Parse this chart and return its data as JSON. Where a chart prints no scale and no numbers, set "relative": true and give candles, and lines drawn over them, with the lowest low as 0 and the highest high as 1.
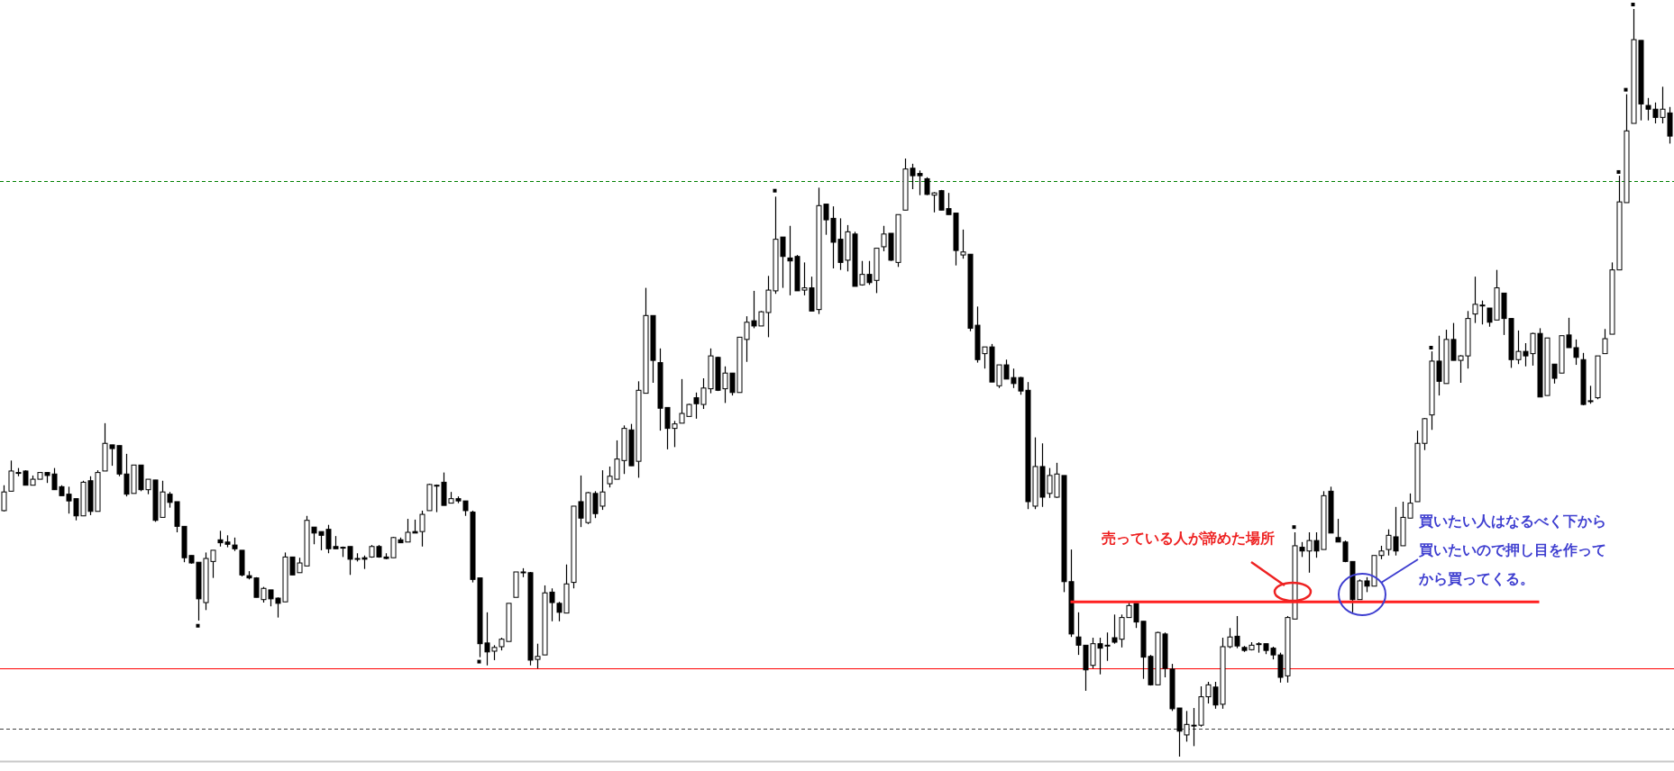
{
  "chart_data": {
    "type": "candlestick",
    "relative": true,
    "categories": [
      null,
      null,
      null,
      null,
      null,
      null,
      null,
      null,
      null,
      null,
      null,
      null,
      null,
      null,
      null,
      null,
      null,
      null,
      null,
      null,
      null,
      null,
      null,
      null,
      null,
      null,
      null,
      null,
      null,
      null,
      null,
      null,
      null,
      null,
      null,
      null,
      null,
      null,
      null,
      null,
      null,
      null,
      null,
      null,
      null,
      null,
      null,
      null,
      null,
      null,
      null,
      null,
      null,
      null,
      null,
      null,
      null,
      null,
      null,
      null,
      null,
      null,
      null,
      null,
      null,
      null,
      null,
      null,
      null,
      null,
      null,
      null,
      null,
      null,
      null,
      null,
      null,
      null,
      null,
      null,
      null,
      null,
      null,
      null,
      null,
      null,
      null,
      null,
      null,
      null,
      null,
      null,
      null,
      null,
      null,
      null,
      null,
      null,
      null,
      null,
      null,
      null,
      null,
      null,
      null,
      null,
      null,
      null,
      null,
      null,
      null,
      null,
      null,
      null,
      null,
      null,
      null,
      null,
      null,
      null,
      null,
      null,
      null,
      null,
      null,
      null,
      null,
      null,
      null,
      null,
      null,
      null,
      null,
      null,
      null,
      null,
      null,
      null,
      null,
      null,
      null,
      null,
      null,
      null,
      null,
      null,
      null,
      null,
      null,
      null,
      null,
      null,
      null,
      null,
      null,
      null,
      null,
      null,
      null,
      null,
      null,
      null,
      null,
      null,
      null,
      null,
      null,
      null,
      null,
      null,
      null,
      null,
      null,
      null,
      null,
      null,
      null,
      null,
      null,
      null,
      null,
      null,
      null,
      null,
      null,
      null,
      null,
      null,
      null,
      null,
      null,
      null,
      null,
      null,
      null,
      null,
      null,
      null,
      null,
      null,
      null,
      null,
      null,
      null,
      null,
      null,
      null,
      null,
      null,
      null,
      null,
      null,
      null,
      null,
      null,
      null,
      null,
      null,
      null,
      null,
      null,
      null,
      null,
      null,
      null,
      null,
      null,
      null,
      null,
      null,
      null,
      null
    ],
    "ohlc": [
      [
        0.329,
        0.363,
        0.328,
        0.354
      ],
      [
        0.355,
        0.396,
        0.355,
        0.382
      ],
      [
        0.38,
        0.386,
        0.375,
        0.38
      ],
      [
        0.382,
        0.383,
        0.363,
        0.363
      ],
      [
        0.363,
        0.376,
        0.363,
        0.371
      ],
      [
        0.371,
        0.38,
        0.371,
        0.38
      ],
      [
        0.38,
        0.38,
        0.366,
        0.376
      ],
      [
        0.378,
        0.386,
        0.357,
        0.357
      ],
      [
        0.361,
        0.363,
        0.349,
        0.349
      ],
      [
        0.351,
        0.361,
        0.325,
        0.342
      ],
      [
        0.345,
        0.345,
        0.316,
        0.322
      ],
      [
        0.322,
        0.369,
        0.322,
        0.367
      ],
      [
        0.369,
        0.375,
        0.323,
        0.328
      ],
      [
        0.328,
        0.383,
        0.328,
        0.38
      ],
      [
        0.382,
        0.446,
        0.382,
        0.419
      ],
      [
        0.417,
        0.417,
        0.389,
        0.412
      ],
      [
        0.416,
        0.416,
        0.375,
        0.378
      ],
      [
        0.378,
        0.405,
        0.348,
        0.351
      ],
      [
        0.352,
        0.39,
        0.352,
        0.39
      ],
      [
        0.39,
        0.39,
        0.355,
        0.357
      ],
      [
        0.357,
        0.371,
        0.351,
        0.371
      ],
      [
        0.37,
        0.37,
        0.314,
        0.316
      ],
      [
        0.32,
        0.369,
        0.32,
        0.354
      ],
      [
        0.351,
        0.354,
        0.333,
        0.34
      ],
      [
        0.341,
        0.341,
        0.3,
        0.308
      ],
      [
        0.308,
        0.308,
        0.26,
        0.266
      ],
      [
        0.269,
        0.269,
        0.258,
        0.259
      ],
      [
        0.26,
        0.26,
        0.182,
        0.211
      ],
      [
        0.206,
        0.273,
        0.196,
        0.265
      ],
      [
        0.261,
        0.276,
        0.239,
        0.276
      ],
      [
        0.29,
        0.302,
        0.281,
        0.286
      ],
      [
        0.287,
        0.296,
        0.28,
        0.284
      ],
      [
        0.283,
        0.293,
        0.275,
        0.278
      ],
      [
        0.276,
        0.276,
        0.241,
        0.243
      ],
      [
        0.242,
        0.248,
        0.237,
        0.239
      ],
      [
        0.239,
        0.24,
        0.213,
        0.213
      ],
      [
        0.21,
        0.227,
        0.206,
        0.225
      ],
      [
        0.223,
        0.223,
        0.201,
        0.211
      ],
      [
        0.212,
        0.213,
        0.186,
        0.205
      ],
      [
        0.207,
        0.273,
        0.207,
        0.267
      ],
      [
        0.267,
        0.267,
        0.243,
        0.243
      ],
      [
        0.246,
        0.266,
        0.246,
        0.259
      ],
      [
        0.255,
        0.322,
        0.255,
        0.316
      ],
      [
        0.307,
        0.307,
        0.284,
        0.299
      ],
      [
        0.301,
        0.301,
        0.276,
        0.296
      ],
      [
        0.304,
        0.31,
        0.272,
        0.278
      ],
      [
        0.281,
        0.295,
        0.278,
        0.278
      ],
      [
        0.28,
        0.281,
        0.267,
        0.28
      ],
      [
        0.281,
        0.281,
        0.243,
        0.264
      ],
      [
        0.265,
        0.272,
        0.261,
        0.265
      ],
      [
        0.266,
        0.269,
        0.251,
        0.264
      ],
      [
        0.267,
        0.283,
        0.266,
        0.281
      ],
      [
        0.281,
        0.283,
        0.266,
        0.267
      ],
      [
        0.267,
        0.272,
        0.264,
        0.265
      ],
      [
        0.266,
        0.294,
        0.266,
        0.293
      ],
      [
        0.29,
        0.293,
        0.286,
        0.286
      ],
      [
        0.287,
        0.318,
        0.287,
        0.3
      ],
      [
        0.301,
        0.317,
        0.299,
        0.299
      ],
      [
        0.301,
        0.329,
        0.281,
        0.324
      ],
      [
        0.329,
        0.365,
        0.329,
        0.364
      ],
      [
        0.363,
        0.364,
        0.327,
        0.363
      ],
      [
        0.367,
        0.38,
        0.336,
        0.336
      ],
      [
        0.339,
        0.354,
        0.339,
        0.345
      ],
      [
        0.345,
        0.348,
        0.339,
        0.342
      ],
      [
        0.342,
        0.342,
        0.322,
        0.329
      ],
      [
        0.327,
        0.329,
        0.233,
        0.237
      ],
      [
        0.239,
        0.239,
        0.133,
        0.151
      ],
      [
        0.152,
        0.193,
        0.122,
        0.14
      ],
      [
        0.141,
        0.149,
        0.129,
        0.146
      ],
      [
        0.147,
        0.159,
        0.142,
        0.157
      ],
      [
        0.154,
        0.205,
        0.154,
        0.205
      ],
      [
        0.213,
        0.247,
        0.213,
        0.247
      ],
      [
        0.247,
        0.252,
        0.24,
        0.247
      ],
      [
        0.246,
        0.247,
        0.122,
        0.129
      ],
      [
        0.13,
        0.151,
        0.118,
        0.134
      ],
      [
        0.136,
        0.229,
        0.136,
        0.219
      ],
      [
        0.22,
        0.225,
        0.181,
        0.206
      ],
      [
        0.205,
        0.207,
        0.181,
        0.193
      ],
      [
        0.192,
        0.257,
        0.192,
        0.231
      ],
      [
        0.233,
        0.335,
        0.225,
        0.335
      ],
      [
        0.341,
        0.376,
        0.307,
        0.319
      ],
      [
        0.313,
        0.354,
        0.311,
        0.353
      ],
      [
        0.352,
        0.355,
        0.319,
        0.325
      ],
      [
        0.335,
        0.383,
        0.33,
        0.354
      ],
      [
        0.365,
        0.388,
        0.36,
        0.375
      ],
      [
        0.371,
        0.423,
        0.371,
        0.398
      ],
      [
        0.396,
        0.443,
        0.378,
        0.439
      ],
      [
        0.437,
        0.445,
        0.389,
        0.389
      ],
      [
        0.395,
        0.502,
        0.373,
        0.49
      ],
      [
        0.486,
        0.627,
        0.486,
        0.59
      ],
      [
        0.59,
        0.59,
        0.5,
        0.53
      ],
      [
        0.527,
        0.546,
        0.436,
        0.466
      ],
      [
        0.467,
        0.467,
        0.411,
        0.439
      ],
      [
        0.439,
        0.449,
        0.414,
        0.445
      ],
      [
        0.446,
        0.505,
        0.446,
        0.459
      ],
      [
        0.455,
        0.472,
        0.455,
        0.471
      ],
      [
        0.48,
        0.487,
        0.452,
        0.472
      ],
      [
        0.471,
        0.506,
        0.465,
        0.493
      ],
      [
        0.492,
        0.546,
        0.486,
        0.536
      ],
      [
        0.534,
        0.535,
        0.489,
        0.49
      ],
      [
        0.492,
        0.522,
        0.473,
        0.513
      ],
      [
        0.513,
        0.513,
        0.483,
        0.487
      ],
      [
        0.487,
        0.561,
        0.487,
        0.561
      ],
      [
        0.558,
        0.589,
        0.528,
        0.581
      ],
      [
        0.583,
        0.623,
        0.573,
        0.576
      ],
      [
        0.576,
        0.596,
        0.576,
        0.595
      ],
      [
        0.594,
        0.643,
        0.561,
        0.624
      ],
      [
        0.623,
        0.749,
        0.619,
        0.692
      ],
      [
        0.695,
        0.695,
        0.627,
        0.669
      ],
      [
        0.667,
        0.71,
        0.617,
        0.663
      ],
      [
        0.669,
        0.671,
        0.623,
        0.623
      ],
      [
        0.624,
        0.661,
        0.617,
        0.627
      ],
      [
        0.627,
        0.642,
        0.596,
        0.596
      ],
      [
        0.598,
        0.761,
        0.592,
        0.737
      ],
      [
        0.739,
        0.739,
        0.698,
        0.718
      ],
      [
        0.72,
        0.736,
        0.653,
        0.688
      ],
      [
        0.692,
        0.72,
        0.651,
        0.661
      ],
      [
        0.664,
        0.711,
        0.649,
        0.702
      ],
      [
        0.699,
        0.702,
        0.629,
        0.629
      ],
      [
        0.631,
        0.663,
        0.63,
        0.645
      ],
      [
        0.645,
        0.663,
        0.631,
        0.634
      ],
      [
        0.637,
        0.68,
        0.62,
        0.68
      ],
      [
        0.682,
        0.71,
        0.676,
        0.699
      ],
      [
        0.7,
        0.7,
        0.663,
        0.664
      ],
      [
        0.661,
        0.725,
        0.655,
        0.725
      ],
      [
        0.731,
        0.8,
        0.731,
        0.786
      ],
      [
        0.787,
        0.793,
        0.759,
        0.777
      ],
      [
        0.78,
        0.784,
        0.751,
        0.777
      ],
      [
        0.773,
        0.775,
        0.751,
        0.752
      ],
      [
        0.751,
        0.755,
        0.728,
        0.754
      ],
      [
        0.757,
        0.758,
        0.731,
        0.731
      ],
      [
        0.733,
        0.754,
        0.725,
        0.725
      ],
      [
        0.727,
        0.727,
        0.657,
        0.677
      ],
      [
        0.671,
        0.705,
        0.666,
        0.675
      ],
      [
        0.672,
        0.672,
        0.569,
        0.573
      ],
      [
        0.577,
        0.602,
        0.527,
        0.531
      ],
      [
        0.539,
        0.548,
        0.519,
        0.548
      ],
      [
        0.548,
        0.552,
        0.501,
        0.501
      ],
      [
        0.496,
        0.524,
        0.493,
        0.524
      ],
      [
        0.524,
        0.531,
        0.505,
        0.505
      ],
      [
        0.507,
        0.519,
        0.493,
        0.499
      ],
      [
        0.507,
        0.508,
        0.484,
        0.489
      ],
      [
        0.49,
        0.501,
        0.331,
        0.341
      ],
      [
        0.335,
        0.427,
        0.331,
        0.388
      ],
      [
        0.388,
        0.419,
        0.334,
        0.347
      ],
      [
        0.352,
        0.386,
        0.346,
        0.376
      ],
      [
        0.347,
        0.393,
        0.346,
        0.378
      ],
      [
        0.376,
        0.376,
        0.22,
        0.234
      ],
      [
        0.234,
        0.277,
        0.16,
        0.164
      ],
      [
        0.16,
        0.193,
        0.136,
        0.149
      ],
      [
        0.149,
        0.149,
        0.088,
        0.116
      ],
      [
        0.122,
        0.159,
        0.118,
        0.151
      ],
      [
        0.151,
        0.159,
        0.11,
        0.145
      ],
      [
        0.149,
        0.166,
        0.128,
        0.149
      ],
      [
        0.159,
        0.19,
        0.151,
        0.153
      ],
      [
        0.157,
        0.19,
        0.146,
        0.186
      ],
      [
        0.186,
        0.206,
        0.186,
        0.202
      ],
      [
        0.205,
        0.205,
        0.172,
        0.18
      ],
      [
        0.181,
        0.181,
        0.104,
        0.133
      ],
      [
        0.134,
        0.136,
        0.095,
        0.096
      ],
      [
        0.096,
        0.167,
        0.096,
        0.166
      ],
      [
        0.164,
        0.166,
        0.106,
        0.118
      ],
      [
        0.117,
        0.124,
        0.061,
        0.064
      ],
      [
        0.065,
        0.065,
        0.0,
        0.034
      ],
      [
        0.029,
        0.061,
        0.02,
        0.043
      ],
      [
        0.042,
        0.065,
        0.014,
        0.042
      ],
      [
        0.042,
        0.094,
        0.04,
        0.08
      ],
      [
        0.08,
        0.1,
        0.071,
        0.096
      ],
      [
        0.093,
        0.1,
        0.064,
        0.069
      ],
      [
        0.07,
        0.159,
        0.064,
        0.147
      ],
      [
        0.147,
        0.172,
        0.145,
        0.16
      ],
      [
        0.161,
        0.188,
        0.145,
        0.148
      ],
      [
        0.146,
        0.148,
        0.14,
        0.142
      ],
      [
        0.143,
        0.153,
        0.142,
        0.149
      ],
      [
        0.151,
        0.153,
        0.139,
        0.151
      ],
      [
        0.151,
        0.151,
        0.137,
        0.142
      ],
      [
        0.145,
        0.147,
        0.13,
        0.136
      ],
      [
        0.136,
        0.139,
        0.099,
        0.106
      ],
      [
        0.108,
        0.188,
        0.099,
        0.186
      ],
      [
        0.184,
        0.3,
        0.184,
        0.282
      ],
      [
        0.28,
        0.287,
        0.267,
        0.275
      ],
      [
        0.275,
        0.3,
        0.246,
        0.289
      ],
      [
        0.289,
        0.3,
        0.266,
        0.275
      ],
      [
        0.277,
        0.355,
        0.277,
        0.349
      ],
      [
        0.355,
        0.361,
        0.299,
        0.299
      ],
      [
        0.293,
        0.318,
        0.287,
        0.287
      ],
      [
        0.287,
        0.289,
        0.26,
        0.261
      ],
      [
        0.261,
        0.261,
        0.193,
        0.21
      ],
      [
        0.21,
        0.237,
        0.21,
        0.235
      ],
      [
        0.235,
        0.24,
        0.22,
        0.228
      ],
      [
        0.228,
        0.269,
        0.228,
        0.269
      ],
      [
        0.269,
        0.282,
        0.264,
        0.275
      ],
      [
        0.277,
        0.304,
        0.269,
        0.296
      ],
      [
        0.294,
        0.334,
        0.269,
        0.275
      ],
      [
        0.282,
        0.341,
        0.282,
        0.32
      ],
      [
        0.319,
        0.352,
        0.319,
        0.339
      ],
      [
        0.341,
        0.436,
        0.341,
        0.419
      ],
      [
        0.419,
        0.453,
        0.41,
        0.452
      ],
      [
        0.457,
        0.542,
        0.437,
        0.529
      ],
      [
        0.529,
        0.563,
        0.483,
        0.502
      ],
      [
        0.499,
        0.571,
        0.499,
        0.558
      ],
      [
        0.558,
        0.58,
        0.53,
        0.53
      ],
      [
        0.53,
        0.537,
        0.5,
        0.536
      ],
      [
        0.536,
        0.596,
        0.519,
        0.586
      ],
      [
        0.592,
        0.642,
        0.58,
        0.605
      ],
      [
        0.604,
        0.61,
        0.578,
        0.604
      ],
      [
        0.6,
        0.6,
        0.575,
        0.581
      ],
      [
        0.584,
        0.651,
        0.584,
        0.627
      ],
      [
        0.62,
        0.62,
        0.564,
        0.586
      ],
      [
        0.586,
        0.586,
        0.52,
        0.531
      ],
      [
        0.531,
        0.57,
        0.525,
        0.542
      ],
      [
        0.542,
        0.553,
        0.522,
        0.536
      ],
      [
        0.539,
        0.567,
        0.523,
        0.566
      ],
      [
        0.566,
        0.573,
        0.481,
        0.481
      ],
      [
        0.483,
        0.56,
        0.483,
        0.56
      ],
      [
        0.525,
        0.525,
        0.499,
        0.506
      ],
      [
        0.513,
        0.563,
        0.513,
        0.563
      ],
      [
        0.564,
        0.587,
        0.547,
        0.547
      ],
      [
        0.547,
        0.558,
        0.524,
        0.534
      ],
      [
        0.531,
        0.54,
        0.47,
        0.471
      ],
      [
        0.476,
        0.496,
        0.472,
        0.476
      ],
      [
        0.48,
        0.536,
        0.478,
        0.536
      ],
      [
        0.539,
        0.572,
        0.539,
        0.559
      ],
      [
        0.565,
        0.661,
        0.565,
        0.651
      ],
      [
        0.651,
        0.777,
        0.651,
        0.742
      ],
      [
        0.741,
        0.886,
        0.741,
        0.837
      ],
      [
        0.847,
        1.0,
        0.847,
        0.959
      ],
      [
        0.958,
        0.958,
        0.851,
        0.873
      ],
      [
        0.871,
        0.881,
        0.851,
        0.866
      ],
      [
        0.866,
        0.875,
        0.847,
        0.855
      ],
      [
        0.855,
        0.896,
        0.847,
        0.866
      ],
      [
        0.861,
        0.869,
        0.82,
        0.83
      ]
    ],
    "series": [
      {
        "type": "scatter",
        "color": "#000000",
        "marker": "square",
        "values": [
          null,
          null,
          null,
          null,
          null,
          null,
          null,
          null,
          null,
          null,
          null,
          null,
          null,
          null,
          null,
          null,
          null,
          null,
          null,
          null,
          null,
          null,
          null,
          null,
          null,
          null,
          null,
          0.175,
          null,
          null,
          null,
          null,
          null,
          null,
          null,
          null,
          null,
          null,
          null,
          null,
          null,
          null,
          null,
          null,
          null,
          null,
          null,
          null,
          null,
          null,
          null,
          null,
          null,
          null,
          null,
          null,
          null,
          null,
          null,
          null,
          null,
          null,
          null,
          null,
          null,
          null,
          0.127,
          null,
          null,
          null,
          null,
          null,
          null,
          null,
          null,
          null,
          null,
          null,
          null,
          null,
          null,
          null,
          null,
          null,
          null,
          null,
          null,
          null,
          null,
          null,
          null,
          null,
          null,
          null,
          null,
          null,
          null,
          null,
          null,
          null,
          null,
          null,
          null,
          null,
          null,
          null,
          null,
          0.757,
          null,
          null,
          null,
          null,
          null,
          null,
          null,
          null,
          null,
          null,
          null,
          null,
          null,
          null,
          null,
          null,
          null,
          null,
          null,
          null,
          null,
          null,
          null,
          null,
          null,
          null,
          null,
          null,
          null,
          null,
          null,
          null,
          null,
          null,
          null,
          null,
          null,
          null,
          null,
          null,
          null,
          null,
          null,
          null,
          null,
          null,
          null,
          null,
          null,
          null,
          null,
          null,
          null,
          null,
          null,
          null,
          null,
          null,
          null,
          null,
          null,
          null,
          null,
          null,
          null,
          null,
          null,
          null,
          null,
          null,
          null,
          0.307,
          null,
          null,
          null,
          null,
          null,
          null,
          null,
          null,
          null,
          null,
          null,
          null,
          null,
          null,
          null,
          null,
          null,
          null,
          0.547,
          null,
          null,
          null,
          null,
          null,
          null,
          null,
          null,
          null,
          null,
          null,
          null,
          null,
          null,
          null,
          null,
          null,
          null,
          null,
          null,
          null,
          null,
          null,
          null,
          null,
          0.782,
          0.892,
          1.006,
          null,
          null,
          null,
          null,
          null
        ]
      },
      {
        "type": "line",
        "color": "#ff2020",
        "values": [
          null,
          null,
          null,
          null,
          null,
          null,
          null,
          null,
          null,
          null,
          null,
          null,
          null,
          null,
          null,
          null,
          null,
          null,
          null,
          null,
          null,
          null,
          null,
          null,
          null,
          null,
          null,
          null,
          null,
          null,
          null,
          null,
          null,
          null,
          null,
          null,
          null,
          null,
          null,
          null,
          null,
          null,
          null,
          null,
          null,
          null,
          null,
          null,
          null,
          null,
          null,
          null,
          null,
          null,
          null,
          null,
          null,
          null,
          null,
          null,
          null,
          null,
          null,
          null,
          null,
          null,
          null,
          null,
          null,
          null,
          null,
          null,
          null,
          null,
          null,
          null,
          null,
          null,
          null,
          null,
          null,
          null,
          null,
          null,
          null,
          null,
          null,
          null,
          null,
          null,
          null,
          null,
          null,
          null,
          null,
          null,
          null,
          null,
          null,
          null,
          null,
          null,
          null,
          null,
          null,
          null,
          null,
          null,
          null,
          null,
          null,
          null,
          null,
          null,
          null,
          null,
          null,
          null,
          null,
          null,
          null,
          null,
          null,
          null,
          null,
          null,
          null,
          null,
          null,
          null,
          null,
          null,
          null,
          null,
          null,
          null,
          null,
          null,
          null,
          null,
          null,
          null,
          null,
          null,
          null,
          null,
          null,
          null,
          0.207,
          0.207,
          0.207,
          0.207,
          0.207,
          0.207,
          0.207,
          0.207,
          0.207,
          0.207,
          0.207,
          0.207,
          0.207,
          0.207,
          0.207,
          0.207,
          0.207,
          0.207,
          0.207,
          0.207,
          0.207,
          0.207,
          0.207,
          0.207,
          0.207,
          0.207,
          0.207,
          0.207,
          0.207,
          0.207,
          0.207,
          0.207,
          0.207,
          0.207,
          0.207,
          0.207,
          0.207,
          0.207,
          0.207,
          0.207,
          0.207,
          0.207,
          0.207,
          0.207,
          0.207,
          0.207,
          0.207,
          0.207,
          0.207,
          0.207,
          0.207,
          0.207,
          0.207,
          0.207,
          0.207,
          0.207,
          0.207,
          0.207,
          0.207,
          0.207,
          0.207,
          0.207,
          0.207,
          0.207,
          0.207,
          0.207,
          null,
          null,
          null,
          null,
          null,
          null,
          null,
          null,
          null,
          null,
          null,
          null,
          null,
          null,
          null,
          null,
          null,
          null
        ]
      }
    ],
    "ref_lines": [
      {
        "axis": "y",
        "value": 0.77,
        "color": "#008000",
        "line_style": "dashed"
      },
      {
        "axis": "y",
        "value": 0.118,
        "color": "#ff0000",
        "line_style": "solid"
      },
      {
        "axis": "y",
        "value": 0.037,
        "color": "#404040",
        "line_style": "dashed"
      }
    ],
    "annotations": [
      "売っている人が諦めた場所",
      "買いたい人はなるべく下から",
      "買いたいので押し目を作って",
      "から買ってくる。"
    ]
  }
}
